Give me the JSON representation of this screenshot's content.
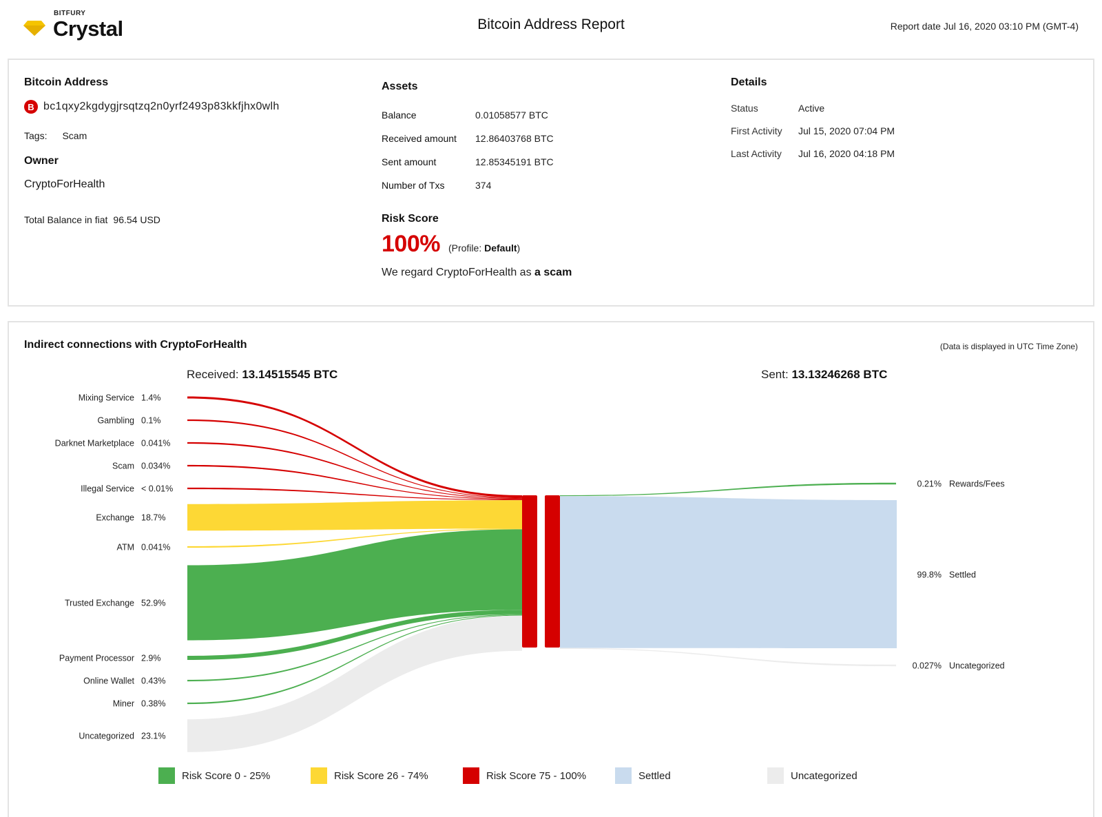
{
  "header": {
    "brand": "BITFURY",
    "product": "Crystal",
    "title": "Bitcoin Address Report",
    "report_date_label": "Report date",
    "report_date_value": "Jul 16, 2020 03:10 PM (GMT-4)",
    "logo_color": "#f5c400"
  },
  "address_block": {
    "heading": "Bitcoin Address",
    "badge": "B",
    "address": "bc1qxy2kgdygjrsqtzq2n0yrf2493p83kkfjhx0wlh",
    "tags_label": "Tags:",
    "tags_value": "Scam",
    "owner_heading": "Owner",
    "owner_value": "CryptoForHealth",
    "fiat_label": "Total Balance in fiat",
    "fiat_value": "96.54 USD"
  },
  "assets": {
    "heading": "Assets",
    "rows": [
      {
        "label": "Balance",
        "value": "0.01058577 BTC"
      },
      {
        "label": "Received amount",
        "value": "12.86403768 BTC"
      },
      {
        "label": "Sent amount",
        "value": "12.85345191 BTC"
      },
      {
        "label": "Number of Txs",
        "value": "374"
      }
    ]
  },
  "risk": {
    "heading": "Risk Score",
    "score": "100%",
    "profile_prefix": "(Profile:",
    "profile_value": "Default",
    "profile_suffix": ")",
    "message_prefix": "We regard CryptoForHealth as",
    "message_emphasis": "a scam",
    "color": "#d50000"
  },
  "details": {
    "heading": "Details",
    "rows": [
      {
        "label": "Status",
        "value": "Active"
      },
      {
        "label": "First Activity",
        "value": "Jul 15, 2020 07:04 PM"
      },
      {
        "label": "Last Activity",
        "value": "Jul 16, 2020 04:18 PM"
      }
    ]
  },
  "connections": {
    "heading": "Indirect connections with CryptoForHealth",
    "timezone_note": "(Data is displayed in UTC Time Zone)",
    "received_label": "Received:",
    "received_value": "13.14515545 BTC",
    "sent_label": "Sent:",
    "sent_value": "13.13246268 BTC",
    "incoming": [
      {
        "name": "Mixing Service",
        "pct": "1.4%",
        "value": 1.4,
        "risk": "high"
      },
      {
        "name": "Gambling",
        "pct": "0.1%",
        "value": 0.1,
        "risk": "high"
      },
      {
        "name": "Darknet Marketplace",
        "pct": "0.041%",
        "value": 0.041,
        "risk": "high"
      },
      {
        "name": "Scam",
        "pct": "0.034%",
        "value": 0.034,
        "risk": "high"
      },
      {
        "name": "Illegal Service",
        "pct": "< 0.01%",
        "value": 0.01,
        "risk": "high"
      },
      {
        "name": "Exchange",
        "pct": "18.7%",
        "value": 18.7,
        "risk": "medium"
      },
      {
        "name": "ATM",
        "pct": "0.041%",
        "value": 0.041,
        "risk": "medium"
      },
      {
        "name": "Trusted Exchange",
        "pct": "52.9%",
        "value": 52.9,
        "risk": "low"
      },
      {
        "name": "Payment Processor",
        "pct": "2.9%",
        "value": 2.9,
        "risk": "low"
      },
      {
        "name": "Online Wallet",
        "pct": "0.43%",
        "value": 0.43,
        "risk": "low"
      },
      {
        "name": "Miner",
        "pct": "0.38%",
        "value": 0.38,
        "risk": "low"
      },
      {
        "name": "Uncategorized",
        "pct": "23.1%",
        "value": 23.1,
        "risk": "uncategorized"
      }
    ],
    "outgoing": [
      {
        "name": "Rewards/Fees",
        "pct": "0.21%",
        "value": 0.21,
        "risk": "low"
      },
      {
        "name": "Settled",
        "pct": "99.8%",
        "value": 99.8,
        "risk": "settled"
      },
      {
        "name": "Uncategorized",
        "pct": "0.027%",
        "value": 0.027,
        "risk": "uncategorized"
      }
    ],
    "colors": {
      "low": "#4caf50",
      "medium": "#fdd835",
      "high": "#d50000",
      "settled": "#c9dbee",
      "uncategorized": "#ececec"
    },
    "legend": [
      {
        "label": "Risk Score 0 - 25%",
        "color": "#4caf50"
      },
      {
        "label": "Risk Score 26 - 74%",
        "color": "#fdd835"
      },
      {
        "label": "Risk Score 75 - 100%",
        "color": "#d50000"
      },
      {
        "label": "Settled",
        "color": "#c9dbee"
      },
      {
        "label": "Uncategorized",
        "color": "#ececec"
      }
    ]
  }
}
